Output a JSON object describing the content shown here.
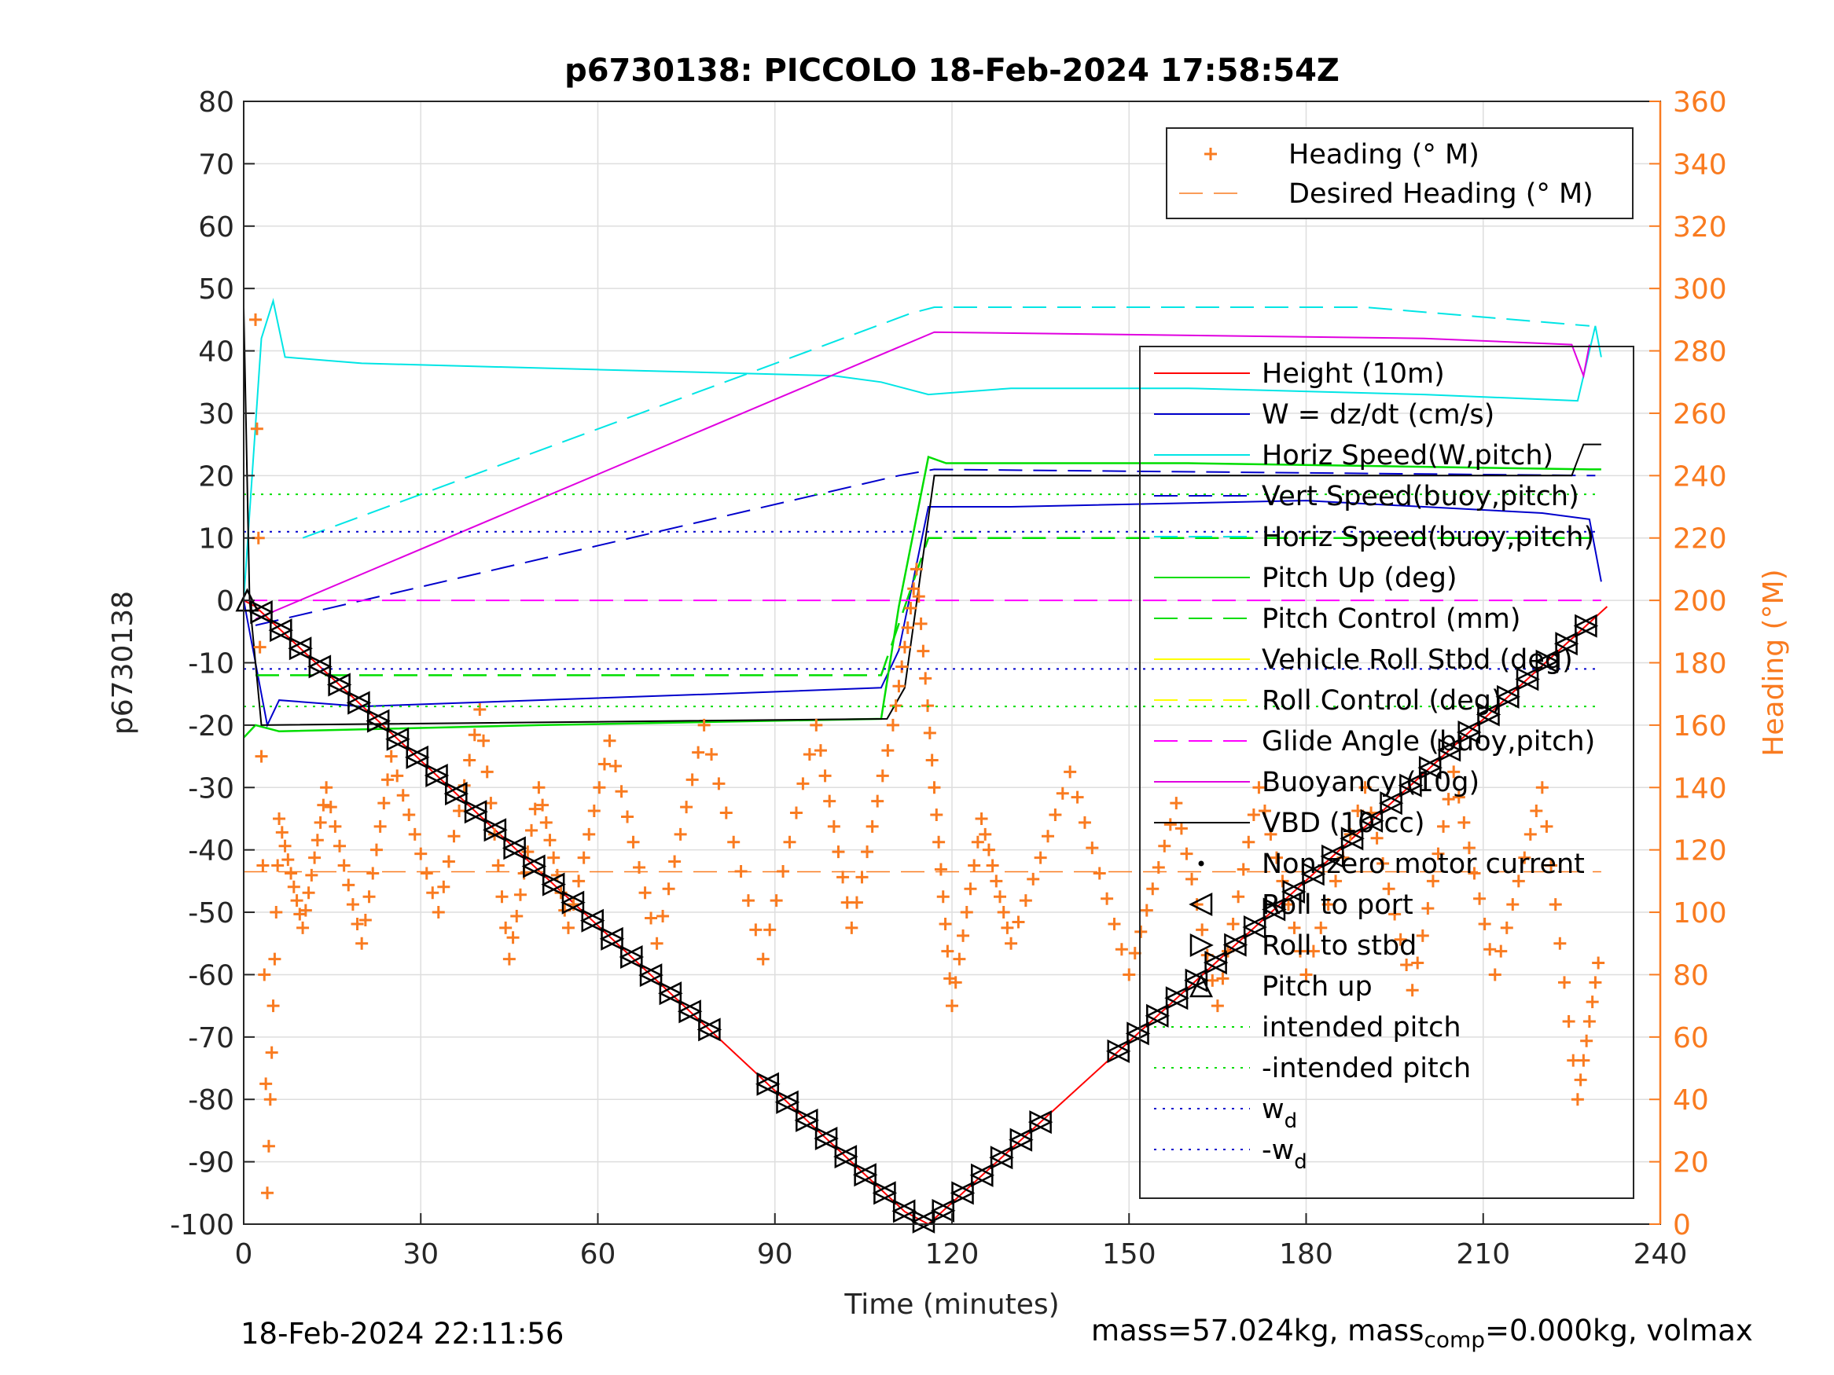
{
  "chart_data": {
    "type": "line",
    "title": "p6730138: PICCOLO 18-Feb-2024 17:58:54Z",
    "xlabel": "Time (minutes)",
    "ylabel": "p6730138",
    "y2label": "Heading (°M)",
    "xlim": [
      0,
      240
    ],
    "ylim": [
      -100,
      80
    ],
    "y2lim": [
      0,
      360
    ],
    "xticks": [
      0,
      30,
      60,
      90,
      120,
      150,
      180,
      210,
      240
    ],
    "yticks": [
      -100,
      -90,
      -80,
      -70,
      -60,
      -50,
      -40,
      -30,
      -20,
      -10,
      0,
      10,
      20,
      30,
      40,
      50,
      60,
      70,
      80
    ],
    "y2ticks": [
      0,
      20,
      40,
      60,
      80,
      100,
      120,
      140,
      160,
      180,
      200,
      220,
      240,
      260,
      280,
      300,
      320,
      340,
      360
    ],
    "grid": true,
    "colors": {
      "heading": "#f97b20",
      "height": "#ff0000",
      "w": "#0000cc",
      "horiz": "#00e5e5",
      "pitch": "#00dd00",
      "roll": "#ffff00",
      "glide": "#ff00ff",
      "buoy": "#e000e0",
      "vbd": "#000000",
      "right_axis": "#f97b20"
    },
    "legend_top": {
      "placement": "top-right",
      "entries": [
        "Heading (° M)",
        "Desired Heading (° M)"
      ]
    },
    "legend_main": {
      "placement": "right",
      "entries": [
        "Height (10m)",
        "W = dz/dt (cm/s)",
        "Horiz Speed(W,pitch)",
        "Vert Speed(buoy,pitch)",
        "Horiz Speed(buoy,pitch)",
        "Pitch Up (deg)",
        "Pitch Control (mm)",
        "Vehicle Roll Stbd (deg)",
        "Roll Control (deg)",
        "Glide Angle (buoy,pitch)",
        "Buoyancy (10g)",
        "VBD (10 cc)",
        "Non-zero motor current",
        "Roll to port",
        "Roll to stbd",
        "Pitch up",
        "intended pitch",
        "-intended pitch",
        "w",
        "-w"
      ],
      "subscript": "d"
    },
    "series": [
      {
        "name": "Height (10m)",
        "x": [
          0,
          2,
          112,
          116,
          231
        ],
        "y": [
          0,
          -1,
          -98,
          -100,
          -1
        ]
      },
      {
        "name": "W = dz/dt (cm/s)",
        "x": [
          0,
          2,
          4,
          6,
          20,
          50,
          80,
          108,
          111,
          116,
          130,
          180,
          220,
          228,
          230
        ],
        "y": [
          0,
          -10,
          -20,
          -16,
          -17,
          -16,
          -15,
          -14,
          -8,
          15,
          15,
          16,
          14,
          13,
          3
        ]
      },
      {
        "name": "Horiz Speed(W,pitch)",
        "x": [
          0,
          3,
          5,
          7,
          20,
          60,
          100,
          108,
          116,
          130,
          160,
          200,
          226,
          229,
          230
        ],
        "y": [
          0,
          42,
          48,
          39,
          38,
          37,
          36,
          35,
          33,
          34,
          34,
          33,
          32,
          44,
          39
        ]
      },
      {
        "name": "Vert Speed(buoy,pitch)",
        "x": [
          2,
          111,
          117,
          229
        ],
        "y": [
          -4,
          20,
          21,
          20
        ]
      },
      {
        "name": "Horiz Speed(buoy,pitch)",
        "x": [
          10,
          113,
          117,
          190,
          228
        ],
        "y": [
          10,
          46,
          47,
          47,
          44
        ]
      },
      {
        "name": "Pitch Up (deg)",
        "x": [
          0,
          2,
          6,
          50,
          108,
          111,
          116,
          119,
          160,
          228,
          230
        ],
        "y": [
          -22,
          -20,
          -21,
          -20,
          -19,
          -1,
          23,
          22,
          22,
          21,
          21
        ]
      },
      {
        "name": "Pitch Control (mm)",
        "x": [
          2,
          108,
          116,
          228
        ],
        "y": [
          -12,
          -12,
          10,
          10
        ]
      },
      {
        "name": "Glide Angle (buoy,pitch)",
        "x": [
          0,
          230
        ],
        "y": [
          0,
          0
        ]
      },
      {
        "name": "Buoyancy (10g)",
        "x": [
          2,
          117,
          200,
          225,
          227,
          228
        ],
        "y": [
          -3,
          43,
          42,
          41,
          36,
          41
        ]
      },
      {
        "name": "VBD (10 cc)",
        "x": [
          0,
          1,
          3,
          109,
          112,
          117,
          225,
          227,
          230
        ],
        "y": [
          47,
          0,
          -20,
          -19,
          -14,
          20,
          20,
          25,
          25
        ]
      },
      {
        "name": "Heading (° M)",
        "x": [
          2,
          4,
          6,
          10,
          14,
          20,
          25,
          33,
          40,
          45,
          50,
          55,
          62,
          70,
          78,
          88,
          97,
          103,
          110,
          114,
          117,
          120,
          125,
          130,
          140,
          150,
          158,
          165,
          172,
          180,
          190,
          198,
          205,
          212,
          220,
          226,
          230
        ],
        "y": [
          290,
          10,
          130,
          95,
          140,
          90,
          150,
          100,
          165,
          85,
          140,
          95,
          155,
          90,
          160,
          85,
          160,
          95,
          160,
          210,
          140,
          70,
          130,
          90,
          145,
          80,
          135,
          70,
          140,
          80,
          140,
          75,
          145,
          80,
          140,
          40,
          90
        ]
      },
      {
        "name": "Desired Heading (° M)",
        "x": [
          0,
          230
        ],
        "y": [
          113,
          113
        ]
      },
      {
        "name": "intended pitch",
        "x": [
          0,
          230
        ],
        "y": [
          17,
          17
        ]
      },
      {
        "name": "-intended pitch",
        "x": [
          0,
          230
        ],
        "y": [
          -17,
          -17
        ]
      },
      {
        "name": "w",
        "x": [
          0,
          230
        ],
        "y": [
          11,
          11
        ]
      },
      {
        "name": "-w",
        "x": [
          0,
          230
        ],
        "y": [
          -11,
          -11
        ]
      }
    ]
  },
  "footer": {
    "left": "18-Feb-2024 22:11:56",
    "right_a": "mass=57.024kg, mass",
    "right_sub": "comp",
    "right_b": "=0.000kg, volmax"
  }
}
